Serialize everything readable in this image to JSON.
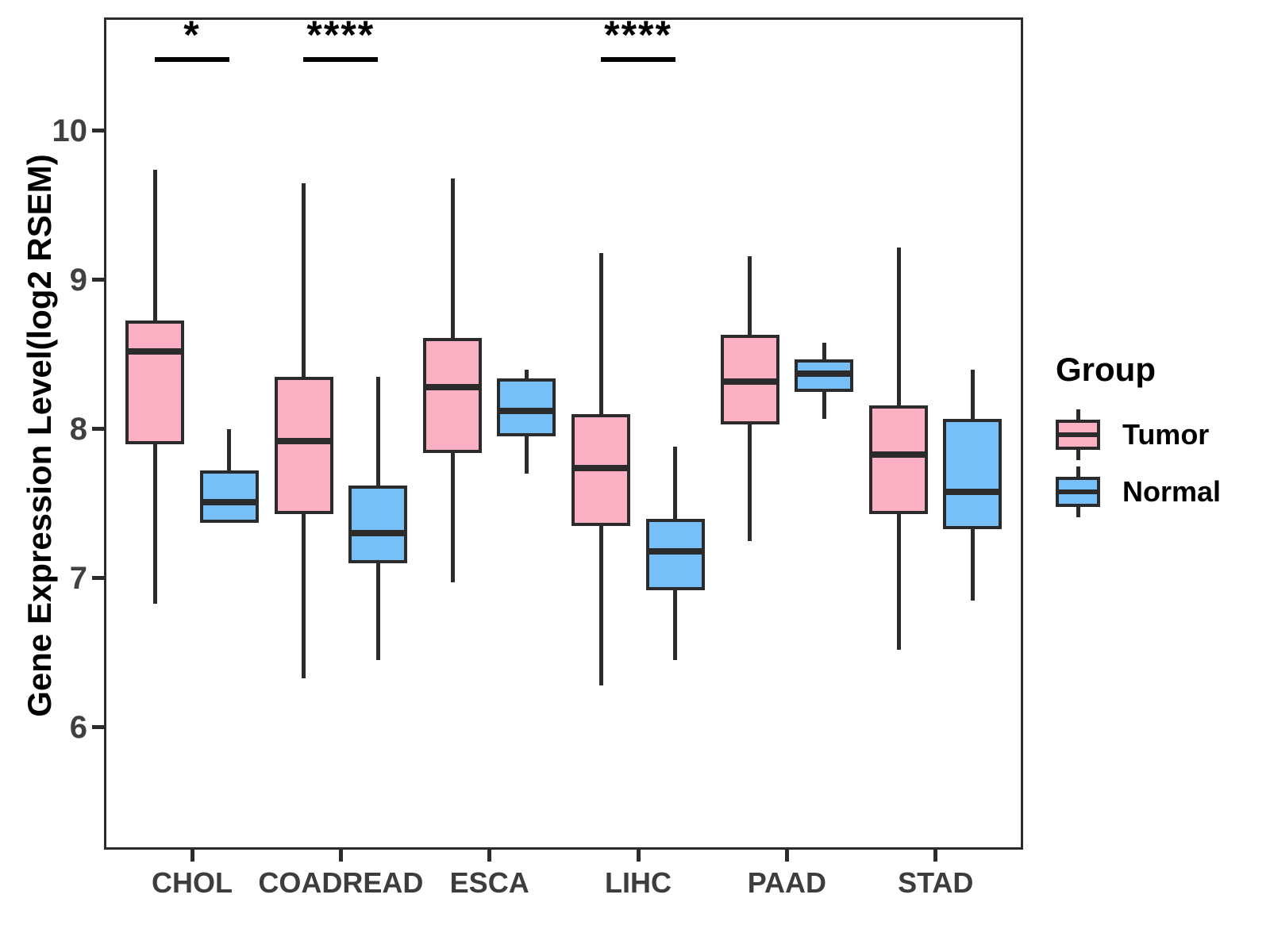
{
  "chart_data": {
    "type": "box",
    "title": "",
    "xlabel": "",
    "ylabel": "Gene Expression Level(log2 RSEM)",
    "ylim": [
      5.18,
      10.76
    ],
    "yticks": [
      6,
      7,
      8,
      9,
      10
    ],
    "grid": "off",
    "categories": [
      "CHOL",
      "COADREAD",
      "ESCA",
      "LIHC",
      "PAAD",
      "STAD"
    ],
    "legend": {
      "title": "Group",
      "position": "right"
    },
    "groups": [
      {
        "name": "Tumor",
        "fill": "#FBB0C4"
      },
      {
        "name": "Normal",
        "fill": "#77BFF7"
      }
    ],
    "series": [
      {
        "name": "Tumor",
        "boxes": [
          {
            "category": "CHOL",
            "whisker_low": 6.83,
            "q1": 7.9,
            "median": 8.52,
            "q3": 8.73,
            "whisker_high": 9.74
          },
          {
            "category": "COADREAD",
            "whisker_low": 6.33,
            "q1": 7.43,
            "median": 7.92,
            "q3": 8.35,
            "whisker_high": 9.65
          },
          {
            "category": "ESCA",
            "whisker_low": 6.97,
            "q1": 7.84,
            "median": 8.28,
            "q3": 8.61,
            "whisker_high": 9.68
          },
          {
            "category": "LIHC",
            "whisker_low": 6.28,
            "q1": 7.35,
            "median": 7.74,
            "q3": 8.1,
            "whisker_high": 9.18
          },
          {
            "category": "PAAD",
            "whisker_low": 7.25,
            "q1": 8.03,
            "median": 8.32,
            "q3": 8.63,
            "whisker_high": 9.16
          },
          {
            "category": "STAD",
            "whisker_low": 6.52,
            "q1": 7.43,
            "median": 7.83,
            "q3": 8.16,
            "whisker_high": 9.22
          }
        ]
      },
      {
        "name": "Normal",
        "boxes": [
          {
            "category": "CHOL",
            "whisker_low": 7.37,
            "q1": 7.37,
            "median": 7.51,
            "q3": 7.72,
            "whisker_high": 8.0
          },
          {
            "category": "COADREAD",
            "whisker_low": 6.45,
            "q1": 7.1,
            "median": 7.3,
            "q3": 7.62,
            "whisker_high": 8.35
          },
          {
            "category": "ESCA",
            "whisker_low": 7.7,
            "q1": 7.95,
            "median": 8.12,
            "q3": 8.34,
            "whisker_high": 8.4
          },
          {
            "category": "LIHC",
            "whisker_low": 6.45,
            "q1": 6.92,
            "median": 7.18,
            "q3": 7.4,
            "whisker_high": 7.88
          },
          {
            "category": "PAAD",
            "whisker_low": 8.07,
            "q1": 8.25,
            "median": 8.37,
            "q3": 8.47,
            "whisker_high": 8.58
          },
          {
            "category": "STAD",
            "whisker_low": 6.85,
            "q1": 7.33,
            "median": 7.58,
            "q3": 8.07,
            "whisker_high": 8.4
          }
        ]
      }
    ],
    "significance": [
      {
        "category": "CHOL",
        "label": "*"
      },
      {
        "category": "COADREAD",
        "label": "****"
      },
      {
        "category": "LIHC",
        "label": "****"
      }
    ],
    "colors": {
      "tumor_fill": "#FBB0C4",
      "normal_fill": "#77BFF7",
      "box_border": "#2B2B2B",
      "axis": "#2B2B2B",
      "tick_label": "#404040",
      "text": "#000000"
    }
  }
}
